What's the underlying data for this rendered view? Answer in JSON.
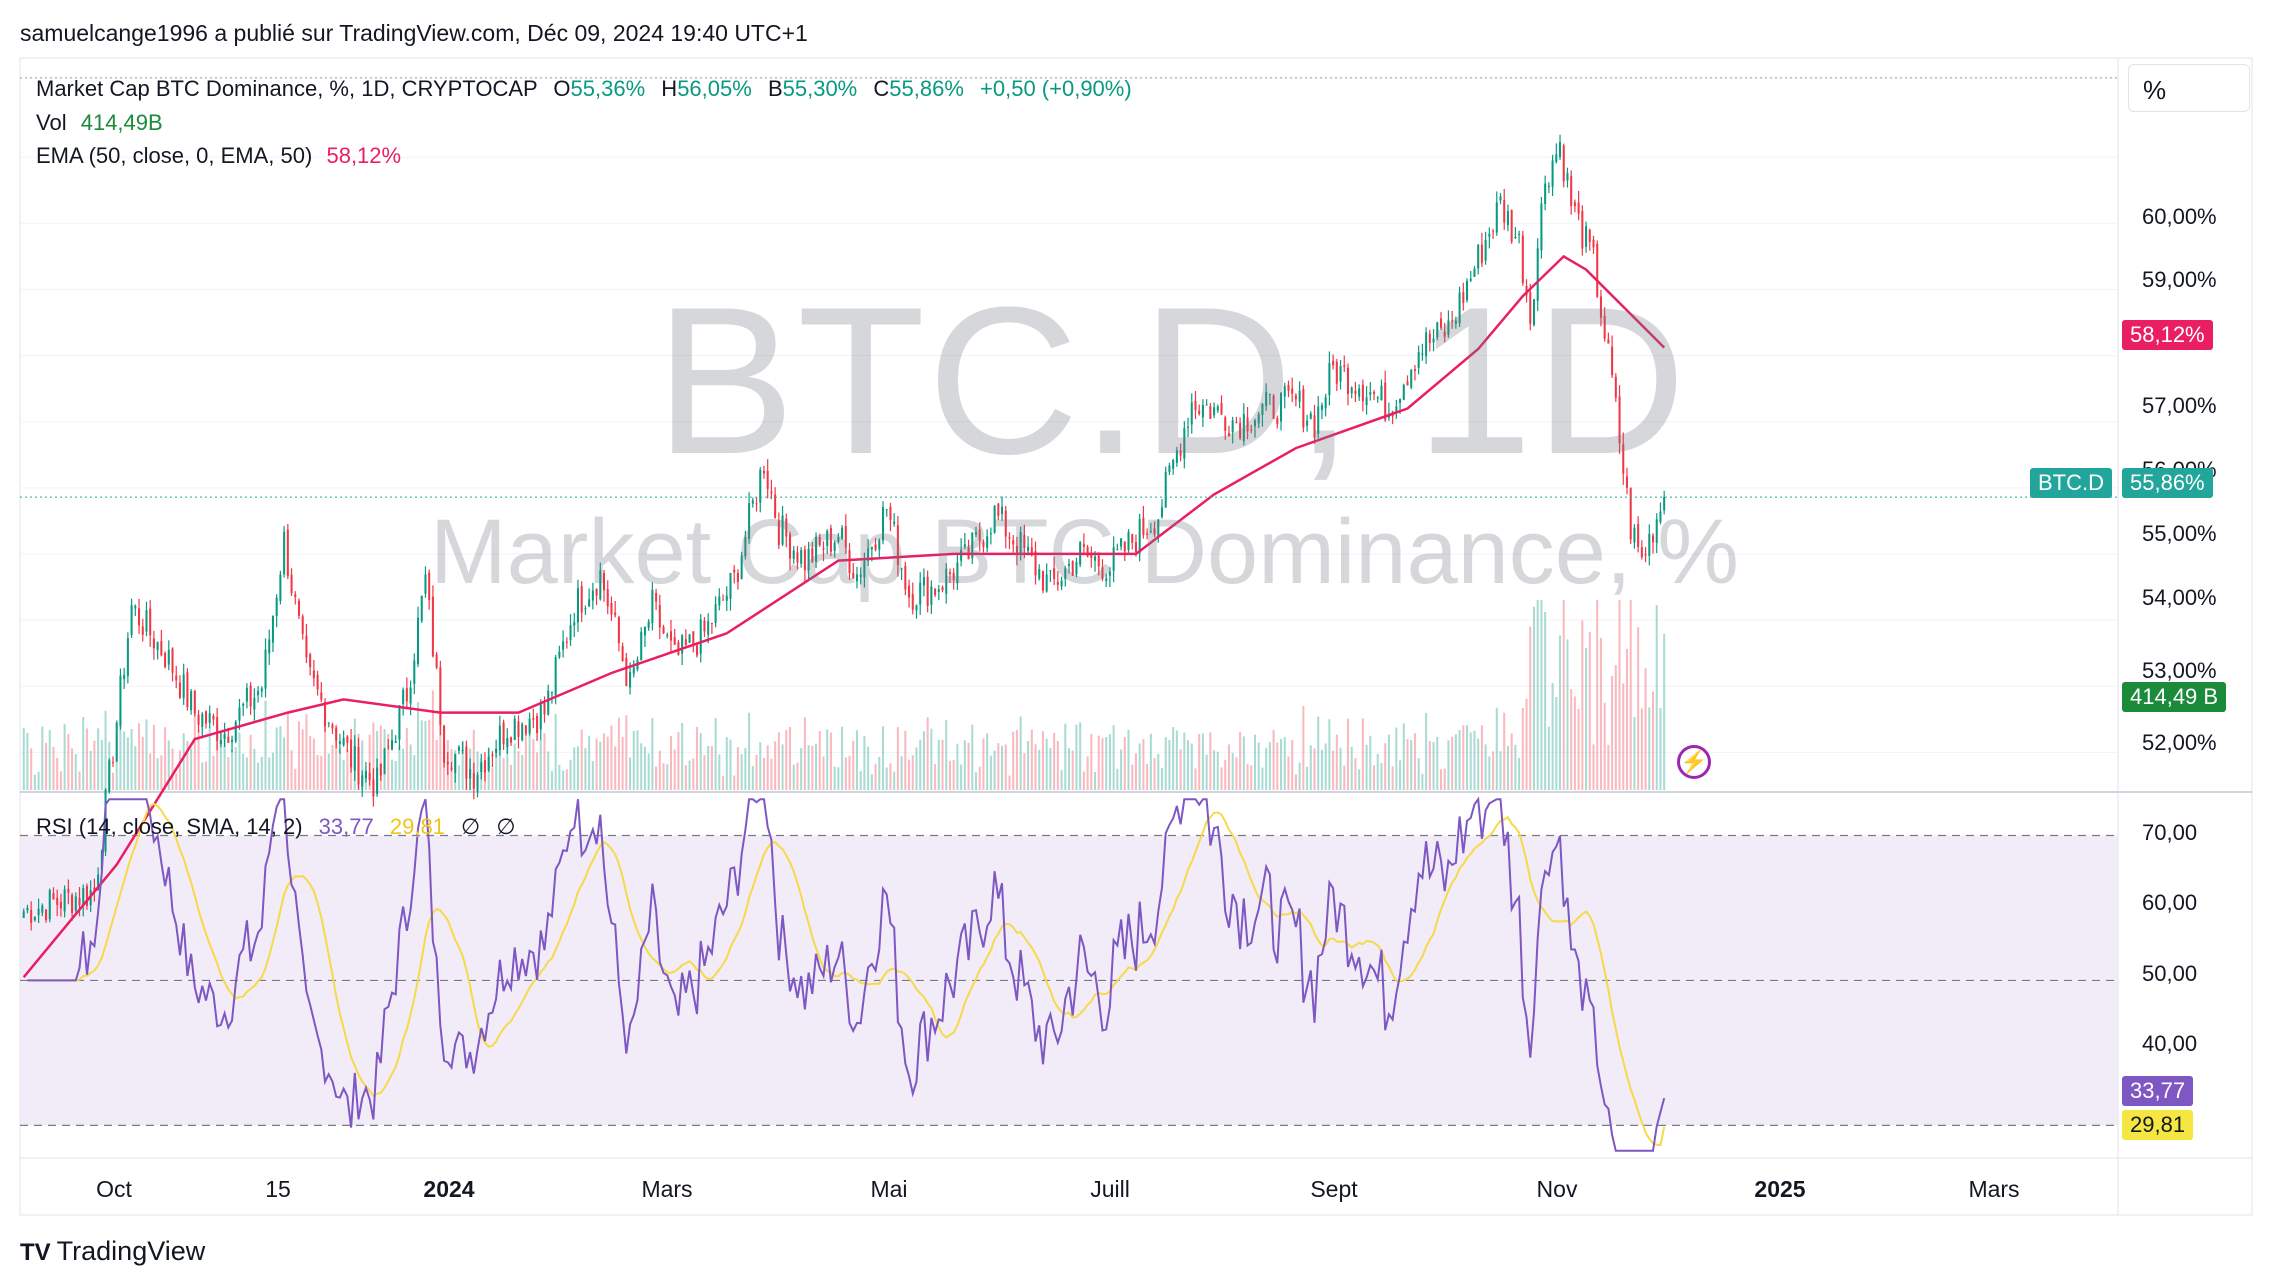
{
  "publisher_line": "samuelcange1996 a publié sur TradingView.com, Déc 09, 2024 19:40 UTC+1",
  "legend": {
    "title": "Market Cap BTC Dominance, %, 1D, CRYPTOCAP",
    "o_label": "O",
    "o_value": "55,36%",
    "h_label": "H",
    "h_value": "56,05%",
    "b_label": "B",
    "b_value": "55,30%",
    "c_label": "C",
    "c_value": "55,86%",
    "change": "+0,50 (+0,90%)",
    "vol_label": "Vol",
    "vol_value": "414,49",
    "vol_unit": "B",
    "ema_label": "EMA (50, close, 0, EMA, 50)",
    "ema_value": "58,12%"
  },
  "rsi_legend": {
    "label": "RSI (14, close, SMA, 14, 2)",
    "rsi_value": "33,77",
    "ma_value": "29,81",
    "sym1": "∅",
    "sym2": "∅"
  },
  "watermark": {
    "symbol": "BTC.D, 1D",
    "name": "Market Cap BTC Dominance, %"
  },
  "scale_button": "%",
  "price_axis": [
    "60,00%",
    "59,00%",
    "57,00%",
    "56,00%",
    "55,00%",
    "54,00%",
    "53,00%",
    "52,00%"
  ],
  "rsi_axis": [
    "70,00",
    "60,00",
    "50,00",
    "40,00"
  ],
  "time_axis": [
    {
      "label": "Oct",
      "bold": false
    },
    {
      "label": "15",
      "bold": false
    },
    {
      "label": "2024",
      "bold": true
    },
    {
      "label": "Mars",
      "bold": false
    },
    {
      "label": "Mai",
      "bold": false
    },
    {
      "label": "Juill",
      "bold": false
    },
    {
      "label": "Sept",
      "bold": false
    },
    {
      "label": "Nov",
      "bold": false
    },
    {
      "label": "2025",
      "bold": true
    },
    {
      "label": "Mars",
      "bold": false
    }
  ],
  "badges": {
    "ema": "58,12%",
    "symbol": "BTC.D",
    "price": "55,86%",
    "volume": "414,49 B",
    "rsi": "33,77",
    "rsi_ma": "29,81"
  },
  "colors": {
    "up": "#089981",
    "down": "#f23645",
    "ema": "#e91e63",
    "rsi": "#7e57c2",
    "rsi_ma": "#f7d94a",
    "rsi_band": "#ede7f6",
    "volume_badge": "#1b8a3a"
  },
  "branding": {
    "logo_text": "TradingView"
  },
  "chart_data": [
    {
      "type": "candlestick",
      "title": "Market Cap BTC Dominance, %, 1D, CRYPTOCAP",
      "ylim": [
        51.4,
        62.5
      ],
      "x_range": [
        "2023-09-24",
        "2025-04-10"
      ],
      "price_keypoints": [
        [
          "2023-09-25",
          49.6
        ],
        [
          "2023-10-14",
          49.9
        ],
        [
          "2023-10-24",
          54.2
        ],
        [
          "2023-11-03",
          53.4
        ],
        [
          "2023-11-10",
          52.6
        ],
        [
          "2023-11-18",
          52.3
        ],
        [
          "2023-11-28",
          53.0
        ],
        [
          "2023-12-04",
          55.2
        ],
        [
          "2023-12-10",
          53.2
        ],
        [
          "2023-12-22",
          51.9
        ],
        [
          "2023-12-29",
          51.5
        ],
        [
          "2024-01-06",
          52.9
        ],
        [
          "2024-01-11",
          54.6
        ],
        [
          "2024-01-16",
          52.1
        ],
        [
          "2024-01-24",
          51.7
        ],
        [
          "2024-02-02",
          52.4
        ],
        [
          "2024-02-12",
          52.6
        ],
        [
          "2024-02-20",
          54.2
        ],
        [
          "2024-02-27",
          54.7
        ],
        [
          "2024-03-06",
          53.0
        ],
        [
          "2024-03-12",
          54.2
        ],
        [
          "2024-03-18",
          53.4
        ],
        [
          "2024-03-26",
          53.8
        ],
        [
          "2024-04-03",
          54.6
        ],
        [
          "2024-04-11",
          56.4
        ],
        [
          "2024-04-15",
          55.4
        ],
        [
          "2024-04-22",
          54.9
        ],
        [
          "2024-05-01",
          55.3
        ],
        [
          "2024-05-06",
          54.7
        ],
        [
          "2024-05-14",
          55.7
        ],
        [
          "2024-05-20",
          54.4
        ],
        [
          "2024-05-27",
          54.5
        ],
        [
          "2024-06-04",
          54.9
        ],
        [
          "2024-06-12",
          55.6
        ],
        [
          "2024-06-19",
          55.1
        ],
        [
          "2024-06-27",
          54.5
        ],
        [
          "2024-07-05",
          55.0
        ],
        [
          "2024-07-13",
          54.8
        ],
        [
          "2024-07-19",
          55.2
        ],
        [
          "2024-07-26",
          55.6
        ],
        [
          "2024-08-04",
          57.3
        ],
        [
          "2024-08-09",
          57.2
        ],
        [
          "2024-08-16",
          57.0
        ],
        [
          "2024-08-24",
          57.2
        ],
        [
          "2024-09-01",
          57.3
        ],
        [
          "2024-09-06",
          57.0
        ],
        [
          "2024-09-11",
          57.8
        ],
        [
          "2024-09-18",
          57.6
        ],
        [
          "2024-09-26",
          57.2
        ],
        [
          "2024-10-04",
          58.1
        ],
        [
          "2024-10-12",
          58.4
        ],
        [
          "2024-10-18",
          59.2
        ],
        [
          "2024-10-26",
          60.3
        ],
        [
          "2024-10-31",
          59.7
        ],
        [
          "2024-11-03",
          58.6
        ],
        [
          "2024-11-07",
          60.7
        ],
        [
          "2024-11-11",
          61.2
        ],
        [
          "2024-11-14",
          60.3
        ],
        [
          "2024-11-20",
          59.4
        ],
        [
          "2024-11-25",
          57.6
        ],
        [
          "2024-11-30",
          55.4
        ],
        [
          "2024-12-03",
          54.9
        ],
        [
          "2024-12-06",
          55.4
        ],
        [
          "2024-12-09",
          55.86
        ]
      ],
      "ema_keypoints": [
        [
          "2023-09-25",
          48.6
        ],
        [
          "2023-10-20",
          50.3
        ],
        [
          "2023-11-10",
          52.2
        ],
        [
          "2023-12-05",
          52.6
        ],
        [
          "2023-12-20",
          52.8
        ],
        [
          "2024-01-15",
          52.6
        ],
        [
          "2024-02-05",
          52.6
        ],
        [
          "2024-03-01",
          53.2
        ],
        [
          "2024-04-01",
          53.8
        ],
        [
          "2024-05-01",
          54.9
        ],
        [
          "2024-06-01",
          55.0
        ],
        [
          "2024-07-05",
          55.0
        ],
        [
          "2024-07-20",
          55.0
        ],
        [
          "2024-08-10",
          55.9
        ],
        [
          "2024-09-01",
          56.6
        ],
        [
          "2024-10-01",
          57.2
        ],
        [
          "2024-10-20",
          58.1
        ],
        [
          "2024-11-01",
          58.9
        ],
        [
          "2024-11-12",
          59.5
        ],
        [
          "2024-11-18",
          59.3
        ],
        [
          "2024-12-09",
          58.12
        ]
      ]
    },
    {
      "type": "line",
      "title": "RSI (14, close, SMA, 14, 2)",
      "ylim": [
        25.5,
        76.0
      ],
      "bands": [
        30,
        50,
        70
      ],
      "series": [
        {
          "name": "RSI",
          "last": 33.77
        },
        {
          "name": "SMA",
          "last": 29.81
        }
      ]
    }
  ]
}
